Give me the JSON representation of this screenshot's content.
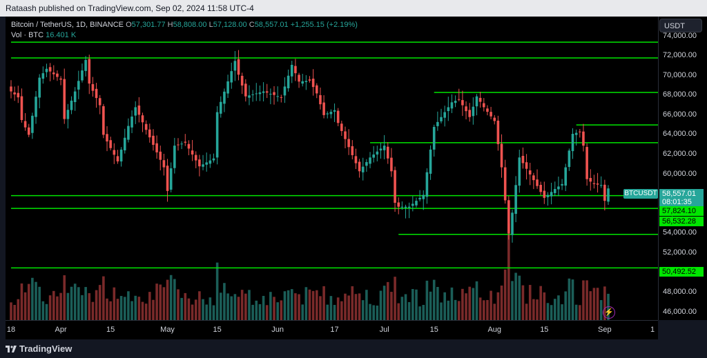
{
  "header": {
    "text": "Rataash published on TradingView.com, Sep 02, 2024 11:58 UTC-4"
  },
  "legend": {
    "symbol": "Bitcoin / TetherUS, 1D, BINANCE",
    "o_label": "O",
    "o": "57,301.77",
    "h_label": "H",
    "h": "58,808.00",
    "l_label": "L",
    "l": "57,128.00",
    "c_label": "C",
    "c": "58,557.01",
    "change": "+1,255.15 (+2.19%)",
    "vol_label": "Vol · BTC",
    "vol": "16.401 K"
  },
  "currency_button": "USDT",
  "symbol_tag": "BTCUSDT",
  "price_labels": {
    "last": "58,557.01",
    "countdown": "08:01:35",
    "level1": "57,824.10",
    "level2": "56,532.28",
    "level3": "50,492.52"
  },
  "colors": {
    "up": "#26a69a",
    "down": "#ef5350",
    "level_line": "#00e600",
    "background": "#000000"
  },
  "footer": {
    "brand": "TradingView",
    "brand_icon": "tradingview-logo-icon",
    "bolt_icon": "lightning-icon"
  },
  "chart_data": {
    "type": "candlestick",
    "y_ticks": [
      "74,000.00",
      "72,000.00",
      "70,000.00",
      "68,000.00",
      "66,000.00",
      "64,000.00",
      "62,000.00",
      "60,000.00",
      "58,000.00",
      "56,000.00",
      "54,000.00",
      "52,000.00",
      "50,000.00",
      "48,000.00",
      "46,000.00"
    ],
    "ylim": [
      45200,
      76000
    ],
    "x_ticks": [
      "18",
      "Apr",
      "15",
      "May",
      "15",
      "Jun",
      "17",
      "Jul",
      "15",
      "Aug",
      "15",
      "Sep",
      "1"
    ],
    "date_range": [
      "2024-03-18",
      "2024-09-02"
    ],
    "horizontal_levels": [
      {
        "price": 73400,
        "from": "2024-03-18",
        "to": "2024-09-02"
      },
      {
        "price": 71800,
        "from": "2024-03-18",
        "to": "2024-09-02"
      },
      {
        "price": 68300,
        "from": "2024-07-15",
        "to": "2024-09-02"
      },
      {
        "price": 65000,
        "from": "2024-08-24",
        "to": "2024-09-02"
      },
      {
        "price": 63200,
        "from": "2024-06-27",
        "to": "2024-09-02"
      },
      {
        "price": 57824.1,
        "from": "2024-03-18",
        "to": "2024-09-02"
      },
      {
        "price": 56532.28,
        "from": "2024-03-18",
        "to": "2024-09-02"
      },
      {
        "price": 53900,
        "from": "2024-07-05",
        "to": "2024-09-02"
      },
      {
        "price": 50492.52,
        "from": "2024-03-18",
        "to": "2024-09-02"
      }
    ],
    "anchor_closes": [
      [
        "2024-03-18",
        68400
      ],
      [
        "2024-03-20",
        67800
      ],
      [
        "2024-03-21",
        65500
      ],
      [
        "2024-03-23",
        64000
      ],
      [
        "2024-03-26",
        69800
      ],
      [
        "2024-03-28",
        70700
      ],
      [
        "2024-04-01",
        69600
      ],
      [
        "2024-04-02",
        65600
      ],
      [
        "2024-04-05",
        68400
      ],
      [
        "2024-04-08",
        71600
      ],
      [
        "2024-04-09",
        69200
      ],
      [
        "2024-04-12",
        67000
      ],
      [
        "2024-04-13",
        64000
      ],
      [
        "2024-04-17",
        61300
      ],
      [
        "2024-04-20",
        64900
      ],
      [
        "2024-04-22",
        66800
      ],
      [
        "2024-04-25",
        64500
      ],
      [
        "2024-04-30",
        60700
      ],
      [
        "2024-05-01",
        58300
      ],
      [
        "2024-05-03",
        62900
      ],
      [
        "2024-05-06",
        63200
      ],
      [
        "2024-05-10",
        60800
      ],
      [
        "2024-05-14",
        61600
      ],
      [
        "2024-05-15",
        66300
      ],
      [
        "2024-05-20",
        71500
      ],
      [
        "2024-05-21",
        70100
      ],
      [
        "2024-05-23",
        67900
      ],
      [
        "2024-05-28",
        68400
      ],
      [
        "2024-06-02",
        67800
      ],
      [
        "2024-06-05",
        71100
      ],
      [
        "2024-06-07",
        69400
      ],
      [
        "2024-06-10",
        69500
      ],
      [
        "2024-06-12",
        68200
      ],
      [
        "2024-06-14",
        66000
      ],
      [
        "2024-06-17",
        66500
      ],
      [
        "2024-06-18",
        65200
      ],
      [
        "2024-06-24",
        60300
      ],
      [
        "2024-06-27",
        61700
      ],
      [
        "2024-07-01",
        62900
      ],
      [
        "2024-07-03",
        60300
      ],
      [
        "2024-07-04",
        57100
      ],
      [
        "2024-07-05",
        56700
      ],
      [
        "2024-07-08",
        56700
      ],
      [
        "2024-07-12",
        57900
      ],
      [
        "2024-07-15",
        64800
      ],
      [
        "2024-07-20",
        67300
      ],
      [
        "2024-07-22",
        67600
      ],
      [
        "2024-07-25",
        65800
      ],
      [
        "2024-07-27",
        67900
      ],
      [
        "2024-07-29",
        66800
      ],
      [
        "2024-08-01",
        65400
      ],
      [
        "2024-08-03",
        60700
      ],
      [
        "2024-08-05",
        54000
      ],
      [
        "2024-08-06",
        56100
      ],
      [
        "2024-08-08",
        61700
      ],
      [
        "2024-08-12",
        59400
      ],
      [
        "2024-08-15",
        57600
      ],
      [
        "2024-08-18",
        58500
      ],
      [
        "2024-08-20",
        59000
      ],
      [
        "2024-08-23",
        64100
      ],
      [
        "2024-08-25",
        64300
      ],
      [
        "2024-08-26",
        62900
      ],
      [
        "2024-08-27",
        59500
      ],
      [
        "2024-08-29",
        59000
      ],
      [
        "2024-08-31",
        58900
      ],
      [
        "2024-09-01",
        57300
      ],
      [
        "2024-09-02",
        58557
      ]
    ]
  }
}
